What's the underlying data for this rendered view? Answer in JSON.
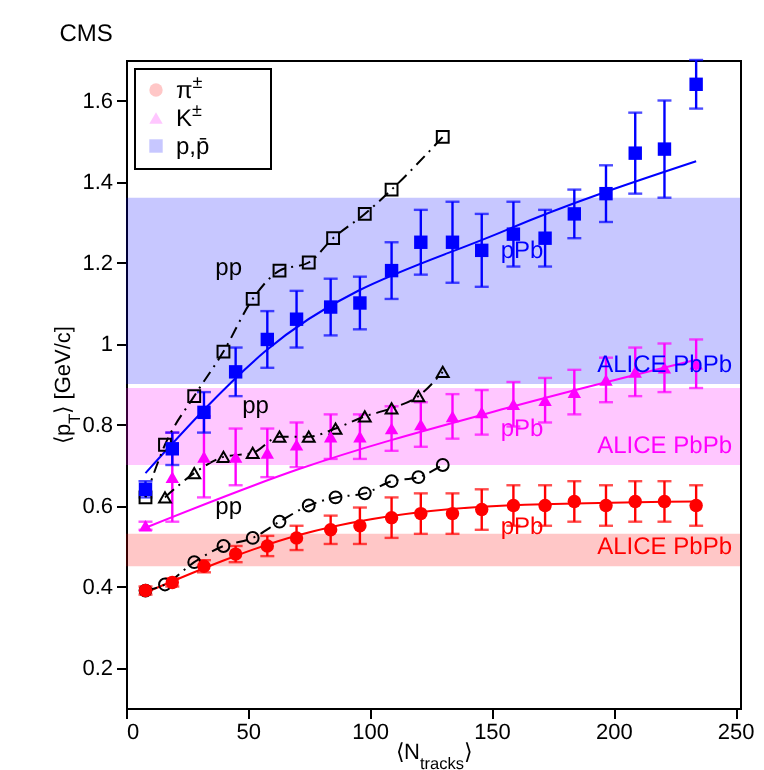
{
  "chart_data": {
    "type": "scatter",
    "title": "CMS",
    "xlabel": "⟨N$_{tracks}$⟩",
    "ylabel": "⟨p$_{T}$⟩ [GeV/c]",
    "xlim": [
      0,
      252
    ],
    "ylim": [
      0.1,
      1.7
    ],
    "xticks": [
      0,
      50,
      100,
      150,
      200,
      250
    ],
    "yticks": [
      0.2,
      0.4,
      0.6,
      0.8,
      1,
      1.2,
      1.4,
      1.6
    ],
    "legend": "top left",
    "series": [
      {
        "name": "π$^{±}$",
        "type": "scatter",
        "color": "#ff0000",
        "marker": "circle",
        "x": [
          8,
          19,
          32,
          45,
          58,
          70,
          84,
          96,
          109,
          121,
          134,
          146,
          159,
          172,
          184,
          197,
          209,
          221,
          234
        ],
        "values": [
          0.39,
          0.41,
          0.45,
          0.48,
          0.5,
          0.52,
          0.54,
          0.55,
          0.57,
          0.58,
          0.58,
          0.59,
          0.6,
          0.6,
          0.61,
          0.6,
          0.61,
          0.61,
          0.6
        ],
        "errors": [
          0.01,
          0.01,
          0.015,
          0.02,
          0.025,
          0.03,
          0.035,
          0.045,
          0.05,
          0.05,
          0.05,
          0.05,
          0.05,
          0.05,
          0.05,
          0.05,
          0.05,
          0.05,
          0.05
        ]
      },
      {
        "name": "K$^{±}$",
        "type": "scatter",
        "color": "#ff00ff",
        "marker": "triangle",
        "x": [
          8,
          19,
          32,
          45,
          58,
          70,
          84,
          96,
          109,
          121,
          134,
          146,
          159,
          172,
          184,
          197,
          209,
          221,
          234
        ],
        "values": [
          0.55,
          0.67,
          0.72,
          0.72,
          0.73,
          0.75,
          0.77,
          0.77,
          0.79,
          0.8,
          0.82,
          0.83,
          0.85,
          0.86,
          0.88,
          0.91,
          0.93,
          0.94,
          0.95
        ],
        "errors": [
          0.01,
          0.11,
          0.1,
          0.07,
          0.06,
          0.055,
          0.055,
          0.055,
          0.055,
          0.055,
          0.055,
          0.055,
          0.055,
          0.055,
          0.055,
          0.055,
          0.06,
          0.06,
          0.06
        ]
      },
      {
        "name": "p,p̄",
        "type": "scatter",
        "color": "#0000ff",
        "marker": "square",
        "x": [
          8,
          19,
          32,
          45,
          58,
          70,
          84,
          96,
          109,
          121,
          134,
          146,
          159,
          172,
          184,
          197,
          209,
          221,
          234
        ],
        "values": [
          0.64,
          0.74,
          0.83,
          0.93,
          1.01,
          1.06,
          1.09,
          1.1,
          1.18,
          1.25,
          1.25,
          1.23,
          1.27,
          1.26,
          1.32,
          1.37,
          1.47,
          1.48,
          1.64
        ],
        "errors": [
          0.02,
          0.04,
          0.05,
          0.06,
          0.07,
          0.07,
          0.07,
          0.065,
          0.07,
          0.08,
          0.1,
          0.09,
          0.08,
          0.07,
          0.06,
          0.07,
          0.1,
          0.12,
          0.06
        ]
      },
      {
        "name": "pPb",
        "type": "line",
        "color": "#ff0000",
        "x": [
          8,
          71,
          156,
          234
        ],
        "values": [
          0.385,
          0.527,
          0.6,
          0.61
        ]
      },
      {
        "name": "pPb",
        "type": "line",
        "color": "#ff00ff",
        "x": [
          8,
          71,
          156,
          234
        ],
        "values": [
          0.545,
          0.69,
          0.84,
          0.96
        ]
      },
      {
        "name": "pPb",
        "type": "line",
        "color": "#0000ff",
        "x": [
          8,
          57,
          156,
          234
        ],
        "values": [
          0.68,
          0.98,
          1.28,
          1.45
        ]
      },
      {
        "name": "pp",
        "type": "line",
        "color": "#000000",
        "marker": "circle",
        "line_style": "dashed",
        "x": [
          8,
          16,
          28,
          40,
          52,
          63,
          75,
          86,
          98,
          109,
          120,
          130
        ],
        "values": [
          0.39,
          0.405,
          0.46,
          0.5,
          0.52,
          0.56,
          0.6,
          0.62,
          0.63,
          0.66,
          0.67,
          0.7
        ]
      },
      {
        "name": "pp",
        "type": "line",
        "color": "#000000",
        "marker": "triangle",
        "line_style": "dashed",
        "x": [
          16,
          28,
          40,
          52,
          63,
          75,
          86,
          98,
          109,
          120,
          130
        ],
        "values": [
          0.62,
          0.68,
          0.72,
          0.73,
          0.77,
          0.77,
          0.79,
          0.82,
          0.84,
          0.87,
          0.93
        ]
      },
      {
        "name": "pp",
        "type": "line",
        "color": "#000000",
        "marker": "square",
        "line_style": "dashed",
        "x": [
          8,
          16,
          28,
          40,
          52,
          63,
          75,
          85,
          98,
          109,
          130
        ],
        "values": [
          0.62,
          0.75,
          0.87,
          0.98,
          1.11,
          1.18,
          1.2,
          1.26,
          1.32,
          1.38,
          1.51
        ]
      }
    ],
    "bands": [
      {
        "axis": "y",
        "from": 0.9,
        "to": 1.36,
        "label": "ALICE PbPb",
        "color": "#0000ff"
      },
      {
        "axis": "y",
        "from": 0.7,
        "to": 0.89,
        "label": "ALICE PbPb",
        "color": "#ff00ff"
      },
      {
        "axis": "y",
        "from": 0.45,
        "to": 0.53,
        "label": "ALICE PbPb",
        "color": "#ff0000"
      }
    ]
  }
}
